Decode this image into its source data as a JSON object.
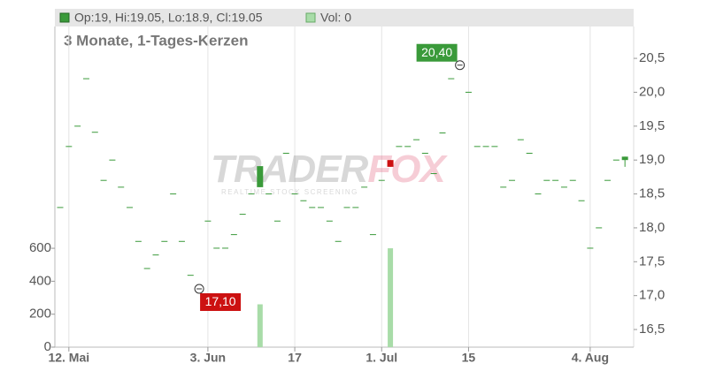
{
  "chart_data": {
    "type": "candlestick",
    "legend": {
      "ohlc": "Op:19, Hi:19.05, Lo:18.9, Cl:19.05",
      "volume": "Vol: 0"
    },
    "subtitle": "3 Monate, 1-Tages-Kerzen",
    "watermark": {
      "brand": [
        "TRADER",
        "FOX"
      ],
      "tagline": "REALTIME STOCK SCREENING"
    },
    "categories": [
      null,
      "12. Mai",
      null,
      null,
      null,
      null,
      null,
      null,
      null,
      null,
      null,
      null,
      null,
      null,
      null,
      null,
      null,
      "3. Jun",
      null,
      null,
      null,
      null,
      null,
      null,
      null,
      null,
      null,
      "17",
      null,
      null,
      null,
      null,
      null,
      null,
      null,
      null,
      null,
      "1. Jul",
      null,
      null,
      null,
      null,
      null,
      null,
      null,
      null,
      null,
      "15",
      null,
      null,
      null,
      null,
      null,
      null,
      null,
      null,
      null,
      null,
      null,
      null,
      null,
      "4. Aug",
      null,
      null,
      null,
      null
    ],
    "open": [
      18.3,
      19.2,
      19.5,
      20.2,
      19.41,
      18.7,
      19.0,
      18.6,
      18.3,
      17.8,
      17.4,
      17.6,
      17.8,
      18.5,
      17.8,
      17.3,
      17.1,
      18.1,
      17.7,
      17.7,
      17.9,
      18.2,
      18.5,
      18.6,
      18.5,
      18.1,
      19.1,
      18.5,
      18.4,
      18.3,
      18.3,
      18.1,
      17.8,
      18.3,
      18.3,
      18.6,
      17.9,
      18.7,
      19.0,
      19.2,
      19.2,
      19.3,
      19.1,
      18.8,
      19.4,
      20.2,
      20.4,
      20.0,
      19.2,
      19.2,
      19.2,
      18.6,
      18.7,
      19.3,
      19.1,
      18.5,
      18.7,
      18.7,
      18.6,
      18.7,
      18.4,
      17.7,
      18.0,
      18.7,
      19.0,
      19.0
    ],
    "high": [
      18.3,
      19.2,
      19.5,
      20.2,
      19.41,
      18.7,
      19.0,
      18.6,
      18.3,
      17.8,
      17.4,
      17.6,
      17.8,
      18.5,
      17.8,
      17.3,
      17.1,
      18.1,
      17.7,
      17.7,
      17.9,
      18.2,
      18.5,
      18.91,
      18.5,
      18.1,
      19.1,
      18.5,
      18.4,
      18.3,
      18.3,
      18.1,
      17.8,
      18.3,
      18.3,
      18.6,
      17.9,
      18.7,
      19.0,
      19.2,
      19.2,
      19.3,
      19.1,
      18.8,
      19.4,
      20.2,
      20.4,
      20.0,
      19.2,
      19.2,
      19.2,
      18.6,
      18.7,
      19.3,
      19.1,
      18.5,
      18.7,
      18.7,
      18.6,
      18.7,
      18.4,
      17.7,
      18.0,
      18.7,
      19.0,
      19.05
    ],
    "low": [
      18.3,
      19.2,
      19.5,
      20.2,
      19.41,
      18.7,
      19.0,
      18.6,
      18.3,
      17.8,
      17.4,
      17.6,
      17.8,
      18.5,
      17.8,
      17.3,
      17.1,
      18.1,
      17.7,
      17.7,
      17.9,
      18.2,
      18.5,
      18.6,
      18.5,
      18.1,
      19.1,
      18.5,
      18.4,
      18.3,
      18.3,
      18.1,
      17.8,
      18.3,
      18.3,
      18.6,
      17.9,
      18.7,
      18.9,
      19.2,
      19.2,
      19.3,
      19.1,
      18.8,
      19.4,
      20.2,
      20.4,
      20.0,
      19.2,
      19.2,
      19.2,
      18.6,
      18.7,
      19.3,
      19.1,
      18.5,
      18.7,
      18.7,
      18.6,
      18.7,
      18.4,
      17.7,
      18.0,
      18.7,
      19.0,
      18.9
    ],
    "close": [
      18.3,
      19.2,
      19.5,
      20.2,
      19.41,
      18.7,
      19.0,
      18.6,
      18.3,
      17.8,
      17.4,
      17.6,
      17.8,
      18.5,
      17.8,
      17.3,
      17.1,
      18.1,
      17.7,
      17.7,
      17.9,
      18.2,
      18.5,
      18.91,
      18.5,
      18.1,
      19.1,
      18.5,
      18.4,
      18.3,
      18.3,
      18.1,
      17.8,
      18.3,
      18.3,
      18.6,
      17.9,
      18.7,
      18.9,
      19.2,
      19.2,
      19.3,
      19.1,
      18.8,
      19.4,
      20.2,
      20.4,
      20.0,
      19.2,
      19.2,
      19.2,
      18.6,
      18.7,
      19.3,
      19.1,
      18.5,
      18.7,
      18.7,
      18.6,
      18.7,
      18.4,
      17.7,
      18.0,
      18.7,
      19.0,
      19.05
    ],
    "volume": [
      0,
      0,
      0,
      0,
      0,
      0,
      0,
      0,
      0,
      0,
      0,
      0,
      0,
      0,
      0,
      0,
      0,
      0,
      0,
      0,
      0,
      0,
      0,
      260,
      0,
      0,
      0,
      0,
      0,
      0,
      0,
      0,
      0,
      0,
      0,
      0,
      0,
      0,
      600,
      0,
      0,
      0,
      0,
      0,
      0,
      0,
      0,
      0,
      0,
      0,
      0,
      0,
      0,
      0,
      0,
      0,
      0,
      0,
      0,
      0,
      0,
      0,
      0,
      0,
      0,
      0
    ],
    "up_color": "#3a9a3a",
    "down_color": "#cc1111",
    "volume_color": "#a8dca8",
    "ylim": [
      16.24,
      20.97
    ],
    "yticks": [
      {
        "value": 16.5,
        "label": "16,5"
      },
      {
        "value": 17.0,
        "label": "17,0"
      },
      {
        "value": 17.5,
        "label": "17,5"
      },
      {
        "value": 18.0,
        "label": "18,0"
      },
      {
        "value": 18.5,
        "label": "18,5"
      },
      {
        "value": 19.0,
        "label": "19,0"
      },
      {
        "value": 19.5,
        "label": "19,5"
      },
      {
        "value": 20.0,
        "label": "20,0"
      },
      {
        "value": 20.5,
        "label": "20,5"
      }
    ],
    "y2lim": [
      0,
      1946
    ],
    "y2ticks": [
      0,
      200,
      400,
      600
    ],
    "annotations": [
      {
        "kind": "high",
        "value": 20.4,
        "label": "20,40"
      },
      {
        "kind": "low",
        "value": 17.1,
        "label": "17,10"
      }
    ],
    "grid": "x"
  }
}
